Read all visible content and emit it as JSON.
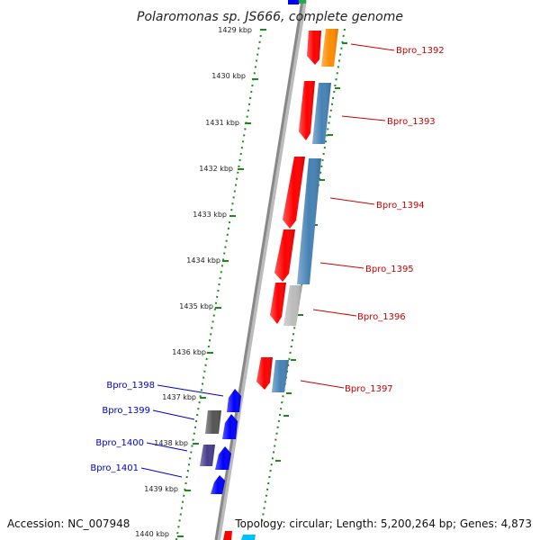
{
  "title": "Polaromonas sp. JS666, complete genome",
  "accession": "Accession: NC_007948",
  "summary": "Topology: circular; Length: 5,200,264 bp; Genes: 4,873",
  "ticks": [
    "1429 kbp",
    "1430 kbp",
    "1431 kbp",
    "1432 kbp",
    "1433 kbp",
    "1434 kbp",
    "1435 kbp",
    "1436 kbp",
    "1437 kbp",
    "1438 kbp",
    "1439 kbp",
    "1440 kbp"
  ],
  "right_genes": [
    "Bpro_1392",
    "Bpro_1393",
    "Bpro_1394",
    "Bpro_1395",
    "Bpro_1396",
    "Bpro_1397"
  ],
  "left_genes": [
    "Bpro_1398",
    "Bpro_1399",
    "Bpro_1400",
    "Bpro_1401"
  ],
  "colors": {
    "forward": "#ff0000",
    "reverse": "#0000ff",
    "steelblue": "#4682b4",
    "orange": "#ff8c00",
    "gray": "#bbbbbb",
    "darkgray": "#555555",
    "slate": "#483d8b",
    "cyan": "#00bfff",
    "tick_green": "#1a8a1a",
    "backbone": "#888888",
    "right_label": "#cc0000",
    "left_label": "#0000cc"
  }
}
